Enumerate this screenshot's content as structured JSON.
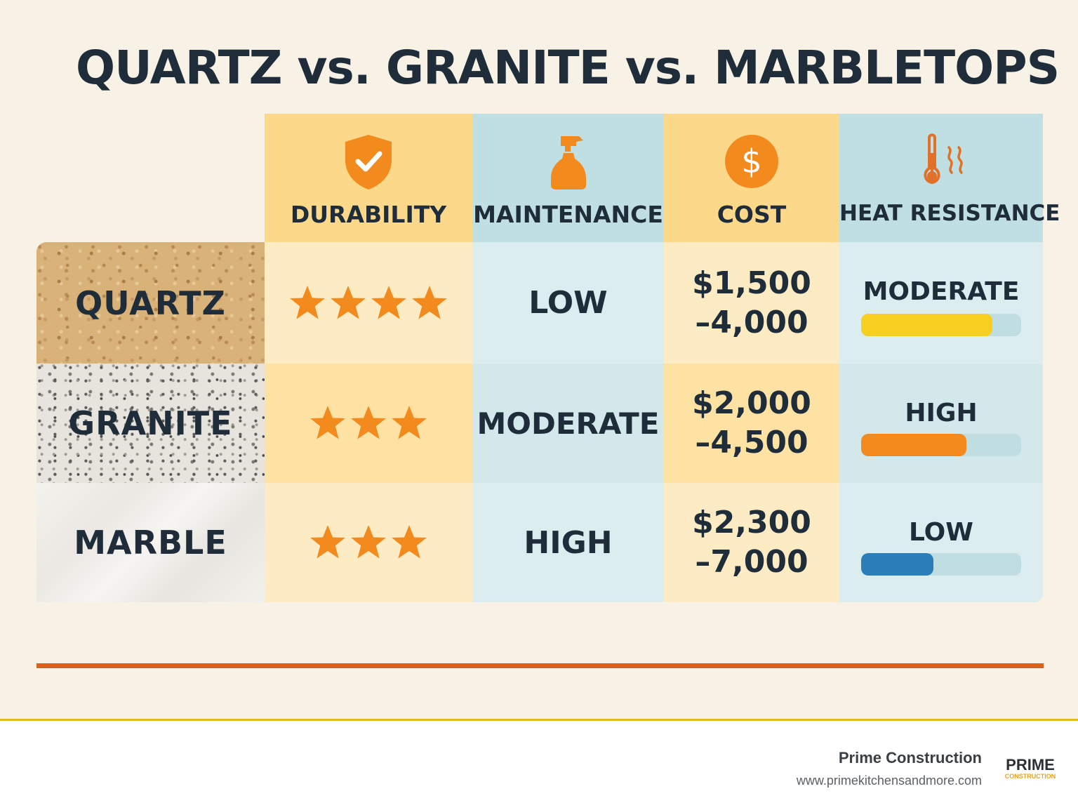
{
  "title": "QUARTZ vs. GRANITE vs. MARBLETOPS",
  "columns": [
    {
      "label": "DURABILITY",
      "icon": "shield-check-icon"
    },
    {
      "label": "MAINTENANCE",
      "icon": "spray-bottle-icon"
    },
    {
      "label": "COST",
      "icon": "dollar-icon"
    },
    {
      "label": "HEAT RESISTANCE",
      "icon": "thermometer-icon"
    }
  ],
  "rows": [
    {
      "material": "QUARTZ",
      "durability_stars": 4,
      "maintenance": "LOW",
      "cost_line1": "$1,500",
      "cost_line2": "–4,000",
      "heat": "MODERATE",
      "heat_level": 0.82,
      "heat_color": "#f6cf1f"
    },
    {
      "material": "GRANITE",
      "durability_stars": 3,
      "maintenance": "MODERATE",
      "cost_line1": "$2,000",
      "cost_line2": "–4,500",
      "heat": "HIGH",
      "heat_level": 0.66,
      "heat_color": "#f28a1e"
    },
    {
      "material": "MARBLE",
      "durability_stars": 3,
      "maintenance": "HIGH",
      "cost_line1": "$2,300",
      "cost_line2": "–7,000",
      "heat": "LOW",
      "heat_level": 0.45,
      "heat_color": "#2a7fb8"
    }
  ],
  "colors": {
    "accent_orange": "#f28a1e",
    "divider": "#d8611e",
    "footer_line": "#e8b52c"
  },
  "footer": {
    "brand": "Prime Construction",
    "url": "www.primekitchensandmore.com",
    "logo_line1": "PRIME",
    "logo_line2": "CONSTRUCTION"
  }
}
